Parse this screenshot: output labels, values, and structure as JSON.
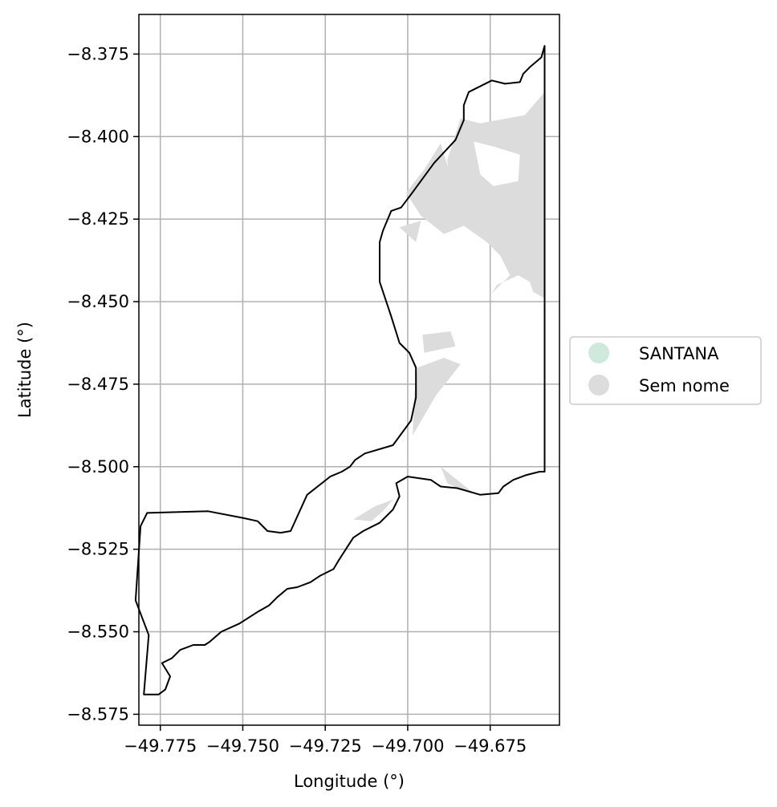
{
  "chart_data": {
    "type": "map",
    "xlabel": "Longitude (°)",
    "ylabel": "Latitude (°)",
    "xlim": [
      -49.7815,
      -49.654
    ],
    "ylim": [
      -8.5783,
      -8.363
    ],
    "x_ticks": [
      -49.775,
      -49.75,
      -49.725,
      -49.7,
      -49.675
    ],
    "x_tick_labels": [
      "−49.775",
      "−49.750",
      "−49.725",
      "−49.700",
      "−49.675"
    ],
    "y_ticks": [
      -8.375,
      -8.4,
      -8.425,
      -8.45,
      -8.475,
      -8.5,
      -8.525,
      -8.55,
      -8.575
    ],
    "y_tick_labels": [
      "−8.375",
      "−8.400",
      "−8.425",
      "−8.450",
      "−8.475",
      "−8.500",
      "−8.525",
      "−8.550",
      "−8.575"
    ],
    "grid": true,
    "legend_position": "center-right outside",
    "legend": [
      {
        "label": "SANTANA",
        "color": "#cfe9dc"
      },
      {
        "label": "Sem nome",
        "color": "#dcdcdc"
      }
    ],
    "boundary": {
      "name": "SANTANA",
      "stroke": "#000000",
      "coordinates": [
        [
          -49.6585,
          -8.3725
        ],
        [
          -49.6595,
          -8.376
        ],
        [
          -49.663,
          -8.379
        ],
        [
          -49.665,
          -8.381
        ],
        [
          -49.666,
          -8.3835
        ],
        [
          -49.6705,
          -8.384
        ],
        [
          -49.6745,
          -8.383
        ],
        [
          -49.6815,
          -8.3865
        ],
        [
          -49.683,
          -8.3905
        ],
        [
          -49.683,
          -8.395
        ],
        [
          -49.6855,
          -8.401
        ],
        [
          -49.692,
          -8.408
        ],
        [
          -49.699,
          -8.4175
        ],
        [
          -49.702,
          -8.4215
        ],
        [
          -49.705,
          -8.4225
        ],
        [
          -49.7075,
          -8.4285
        ],
        [
          -49.7085,
          -8.432
        ],
        [
          -49.7085,
          -8.444
        ],
        [
          -49.705,
          -8.4545
        ],
        [
          -49.7025,
          -8.4625
        ],
        [
          -49.6995,
          -8.4655
        ],
        [
          -49.6975,
          -8.47
        ],
        [
          -49.6975,
          -8.479
        ],
        [
          -49.699,
          -8.486
        ],
        [
          -49.7045,
          -8.4935
        ],
        [
          -49.713,
          -8.496
        ],
        [
          -49.716,
          -8.498
        ],
        [
          -49.7175,
          -8.5
        ],
        [
          -49.72,
          -8.5015
        ],
        [
          -49.7235,
          -8.503
        ],
        [
          -49.7305,
          -8.5085
        ],
        [
          -49.7355,
          -8.5195
        ],
        [
          -49.7385,
          -8.52
        ],
        [
          -49.7425,
          -8.5195
        ],
        [
          -49.7455,
          -8.5165
        ],
        [
          -49.75,
          -8.5155
        ],
        [
          -49.7605,
          -8.5135
        ],
        [
          -49.779,
          -8.514
        ],
        [
          -49.781,
          -8.518
        ],
        [
          -49.7825,
          -8.5405
        ],
        [
          -49.7785,
          -8.551
        ],
        [
          -49.78,
          -8.569
        ],
        [
          -49.7755,
          -8.569
        ],
        [
          -49.7735,
          -8.5675
        ],
        [
          -49.772,
          -8.5635
        ],
        [
          -49.7745,
          -8.5595
        ],
        [
          -49.7715,
          -8.558
        ],
        [
          -49.769,
          -8.5555
        ],
        [
          -49.765,
          -8.554
        ],
        [
          -49.7615,
          -8.554
        ],
        [
          -49.76,
          -8.553
        ],
        [
          -49.7565,
          -8.55
        ],
        [
          -49.751,
          -8.5475
        ],
        [
          -49.7455,
          -8.544
        ],
        [
          -49.742,
          -8.542
        ],
        [
          -49.7395,
          -8.5395
        ],
        [
          -49.7365,
          -8.537
        ],
        [
          -49.7335,
          -8.5365
        ],
        [
          -49.7295,
          -8.535
        ],
        [
          -49.7265,
          -8.533
        ],
        [
          -49.7225,
          -8.531
        ],
        [
          -49.721,
          -8.5285
        ],
        [
          -49.7165,
          -8.5215
        ],
        [
          -49.7135,
          -8.5195
        ],
        [
          -49.7085,
          -8.517
        ],
        [
          -49.7045,
          -8.513
        ],
        [
          -49.7025,
          -8.509
        ],
        [
          -49.7035,
          -8.505
        ],
        [
          -49.7,
          -8.503
        ],
        [
          -49.693,
          -8.504
        ],
        [
          -49.69,
          -8.506
        ],
        [
          -49.685,
          -8.5065
        ],
        [
          -49.678,
          -8.5085
        ],
        [
          -49.6725,
          -8.508
        ],
        [
          -49.671,
          -8.506
        ],
        [
          -49.668,
          -8.504
        ],
        [
          -49.664,
          -8.5025
        ],
        [
          -49.66,
          -8.5015
        ],
        [
          -49.6585,
          -8.5015
        ],
        [
          -49.6585,
          -8.3725
        ]
      ]
    },
    "patches": [
      {
        "name": "Sem nome",
        "color": "#dcdcdc",
        "coordinates": [
          [
            -49.6585,
            -8.3865
          ],
          [
            -49.6585,
            -8.449
          ],
          [
            -49.662,
            -8.447
          ],
          [
            -49.663,
            -8.444
          ],
          [
            -49.6665,
            -8.442
          ],
          [
            -49.673,
            -8.445
          ],
          [
            -49.6745,
            -8.4475
          ],
          [
            -49.669,
            -8.442
          ],
          [
            -49.6735,
            -8.433
          ],
          [
            -49.679,
            -8.4275
          ],
          [
            -49.684,
            -8.4195
          ],
          [
            -49.6875,
            -8.417
          ],
          [
            -49.688,
            -8.407
          ],
          [
            -49.684,
            -8.3945
          ],
          [
            -49.678,
            -8.396
          ],
          [
            -49.6645,
            -8.3935
          ],
          [
            -49.6585,
            -8.3865
          ]
        ]
      },
      {
        "name": "Sem nome",
        "color": "#dcdcdc",
        "coordinates": [
          [
            -49.69,
            -8.402
          ],
          [
            -49.695,
            -8.41
          ],
          [
            -49.7005,
            -8.417
          ],
          [
            -49.696,
            -8.424
          ],
          [
            -49.689,
            -8.4295
          ],
          [
            -49.683,
            -8.427
          ],
          [
            -49.676,
            -8.432
          ],
          [
            -49.67,
            -8.438
          ],
          [
            -49.668,
            -8.431
          ],
          [
            -49.675,
            -8.42
          ],
          [
            -49.687,
            -8.412
          ],
          [
            -49.69,
            -8.402
          ]
        ]
      },
      {
        "name": "Sem nome",
        "color": "#dcdcdc",
        "coordinates": [
          [
            -49.7025,
            -8.4275
          ],
          [
            -49.696,
            -8.4255
          ],
          [
            -49.6975,
            -8.432
          ],
          [
            -49.7025,
            -8.4275
          ]
        ]
      },
      {
        "name": "Sem nome",
        "color": "#dcdcdc",
        "coordinates": [
          [
            -49.6955,
            -8.46
          ],
          [
            -49.687,
            -8.459
          ],
          [
            -49.6855,
            -8.4635
          ],
          [
            -49.695,
            -8.4655
          ],
          [
            -49.6955,
            -8.46
          ]
        ]
      },
      {
        "name": "Sem nome",
        "color": "#dcdcdc",
        "coordinates": [
          [
            -49.697,
            -8.47
          ],
          [
            -49.689,
            -8.467
          ],
          [
            -49.684,
            -8.469
          ],
          [
            -49.6915,
            -8.4785
          ],
          [
            -49.6985,
            -8.4905
          ],
          [
            -49.698,
            -8.478
          ],
          [
            -49.697,
            -8.47
          ]
        ]
      },
      {
        "name": "Sem nome",
        "color": "#dcdcdc",
        "coordinates": [
          [
            -49.69,
            -8.5
          ],
          [
            -49.68,
            -8.508
          ],
          [
            -49.685,
            -8.5065
          ],
          [
            -49.688,
            -8.505
          ],
          [
            -49.69,
            -8.5
          ]
        ]
      },
      {
        "name": "Sem nome",
        "color": "#dcdcdc",
        "coordinates": [
          [
            -49.7165,
            -8.516
          ],
          [
            -49.711,
            -8.5165
          ],
          [
            -49.7075,
            -8.5135
          ],
          [
            -49.7045,
            -8.51
          ],
          [
            -49.71,
            -8.512
          ],
          [
            -49.7165,
            -8.516
          ]
        ]
      }
    ],
    "holes": [
      {
        "coordinates": [
          [
            -49.678,
            -8.4115
          ],
          [
            -49.68,
            -8.4015
          ],
          [
            -49.674,
            -8.403
          ],
          [
            -49.666,
            -8.4055
          ],
          [
            -49.6665,
            -8.4135
          ],
          [
            -49.674,
            -8.415
          ],
          [
            -49.678,
            -8.4115
          ]
        ]
      }
    ]
  }
}
